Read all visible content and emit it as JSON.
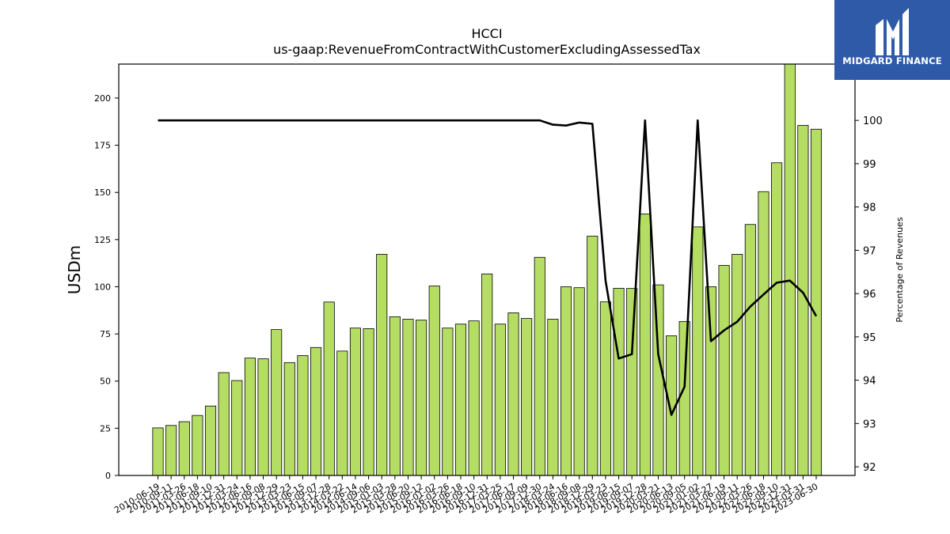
{
  "chart_data": {
    "type": "bar",
    "title": "HCCI",
    "subtitle": "us-gaap:RevenueFromContractWithCustomerExcludingAssessedTax",
    "ylabel": "USDm",
    "y2label": "Percentage of Revenues",
    "ylim": [
      0,
      218
    ],
    "y2lim": [
      91.8,
      101.3
    ],
    "yticks": [
      0,
      25,
      50,
      75,
      100,
      125,
      150,
      175,
      200
    ],
    "y2ticks": [
      92,
      93,
      94,
      95,
      96,
      97,
      98,
      99,
      100
    ],
    "bar_color": "#b5dd63",
    "line_color": "#000000",
    "grid": false,
    "categories": [
      "2010-06-19",
      "2010-09-11",
      "2011-03-26",
      "2011-06-18",
      "2011-09-10",
      "2011-12-31",
      "2012-03-24",
      "2012-06-16",
      "2012-09-08",
      "2012-12-29",
      "2013-03-23",
      "2013-06-15",
      "2013-09-07",
      "2013-12-28",
      "2014-03-22",
      "2014-06-14",
      "2014-09-06",
      "2015-01-03",
      "2015-03-28",
      "2015-06-20",
      "2015-09-12",
      "2016-01-02",
      "2016-03-26",
      "2016-06-18",
      "2016-09-10",
      "2016-12-31",
      "2017-03-25",
      "2017-06-17",
      "2017-09-09",
      "2017-12-30",
      "2018-03-24",
      "2018-06-16",
      "2018-09-08",
      "2018-12-29",
      "2019-03-23",
      "2019-06-15",
      "2019-09-07",
      "2019-12-28",
      "2020-03-21",
      "2020-06-13",
      "2020-09-05",
      "2021-01-02",
      "2021-03-27",
      "2021-06-19",
      "2021-09-11",
      "2022-03-26",
      "2022-06-18",
      "2022-09-10",
      "2022-12-31",
      "2023-03-31",
      "2023-06-30"
    ],
    "series": [
      {
        "values": [
          25.2,
          26.5,
          28.5,
          31.8,
          36.8,
          54.5,
          50.3,
          62.2,
          61.8,
          77.3,
          59.8,
          63.5,
          67.8,
          91.9,
          65.9,
          78.1,
          77.8,
          117.2,
          84.1,
          82.8,
          82.3,
          100.4,
          78.1,
          80.2,
          81.9,
          106.8,
          80.2,
          86.2,
          83.2,
          115.6,
          82.8,
          100.0,
          99.5,
          126.8,
          92.0,
          99.2,
          99.1,
          138.6,
          101.0,
          74.0,
          81.6,
          131.7,
          100.0,
          111.3,
          117.2,
          133.0,
          150.4,
          165.7,
          218.0,
          185.5,
          183.5
        ]
      },
      {
        "axis": "right",
        "values": [
          100,
          100,
          100,
          100,
          100,
          100,
          100,
          100,
          100,
          100,
          100,
          100,
          100,
          100,
          100,
          100,
          100,
          100,
          100,
          100,
          100,
          100,
          100,
          100,
          100,
          100,
          100,
          100,
          100,
          100,
          99.9,
          99.88,
          99.95,
          99.92,
          96.3,
          94.5,
          94.6,
          100,
          94.6,
          93.2,
          93.85,
          100,
          94.9,
          95.15,
          95.35,
          95.7,
          95.98,
          96.25,
          96.3,
          96.02,
          95.48
        ]
      }
    ]
  },
  "logo": {
    "text": "MIDGARD FINANCE"
  }
}
